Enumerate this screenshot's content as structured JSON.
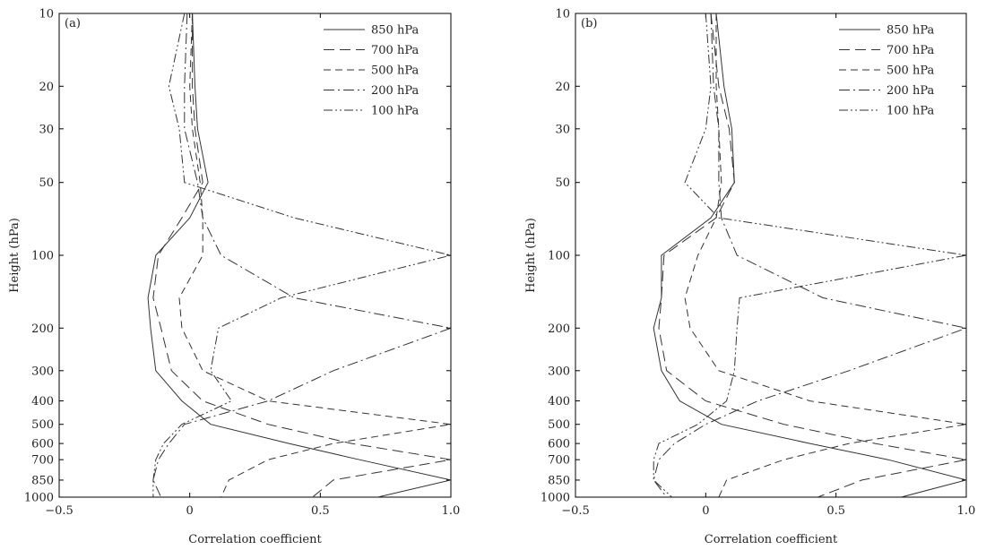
{
  "chart_data": [
    {
      "type": "line",
      "panel_label": "(a)",
      "xlabel": "Correlation coefficient",
      "ylabel": "Height (hPa)",
      "xlim": [
        -0.5,
        1.0
      ],
      "ylim": [
        1000,
        10
      ],
      "y_scale": "log",
      "x_ticks": [
        -0.5,
        0,
        0.5,
        1.0
      ],
      "x_tick_labels": [
        "−0.5",
        "0",
        "0.5",
        "1.0"
      ],
      "y_ticks": [
        10,
        20,
        30,
        50,
        100,
        200,
        300,
        400,
        500,
        600,
        700,
        850,
        1000
      ],
      "y_tick_labels": [
        "10",
        "20",
        "30",
        "50",
        "100",
        "200",
        "300",
        "400",
        "500",
        "600",
        "700",
        "850",
        "1000"
      ],
      "legend_position": "top-right",
      "series": [
        {
          "name": "850 hPa",
          "dash": "",
          "points": [
            [
              0.01,
              10
            ],
            [
              0.02,
              20
            ],
            [
              0.03,
              30
            ],
            [
              0.07,
              50
            ],
            [
              0.0,
              70
            ],
            [
              -0.13,
              100
            ],
            [
              -0.16,
              150
            ],
            [
              -0.15,
              200
            ],
            [
              -0.13,
              300
            ],
            [
              -0.03,
              400
            ],
            [
              0.08,
              500
            ],
            [
              0.38,
              600
            ],
            [
              0.65,
              700
            ],
            [
              1.0,
              850
            ],
            [
              0.72,
              1000
            ]
          ]
        },
        {
          "name": "700 hPa",
          "dash": "12,6",
          "points": [
            [
              0.01,
              10
            ],
            [
              0.01,
              20
            ],
            [
              0.02,
              30
            ],
            [
              0.05,
              50
            ],
            [
              -0.03,
              70
            ],
            [
              -0.12,
              100
            ],
            [
              -0.14,
              150
            ],
            [
              -0.11,
              200
            ],
            [
              -0.07,
              300
            ],
            [
              0.05,
              400
            ],
            [
              0.3,
              500
            ],
            [
              0.62,
              600
            ],
            [
              1.0,
              700
            ],
            [
              0.55,
              850
            ],
            [
              0.47,
              1000
            ]
          ]
        },
        {
          "name": "500 hPa",
          "dash": "8,5",
          "points": [
            [
              0.01,
              10
            ],
            [
              0.0,
              20
            ],
            [
              0.01,
              30
            ],
            [
              0.04,
              50
            ],
            [
              0.05,
              70
            ],
            [
              0.05,
              100
            ],
            [
              -0.04,
              150
            ],
            [
              -0.03,
              200
            ],
            [
              0.05,
              300
            ],
            [
              0.3,
              400
            ],
            [
              1.0,
              500
            ],
            [
              0.55,
              600
            ],
            [
              0.3,
              700
            ],
            [
              0.15,
              850
            ],
            [
              0.12,
              1000
            ]
          ]
        },
        {
          "name": "200 hPa",
          "dash": "12,4,2,4",
          "points": [
            [
              -0.01,
              10
            ],
            [
              -0.02,
              20
            ],
            [
              -0.02,
              30
            ],
            [
              0.03,
              50
            ],
            [
              0.05,
              70
            ],
            [
              0.12,
              100
            ],
            [
              0.4,
              150
            ],
            [
              1.0,
              200
            ],
            [
              0.55,
              300
            ],
            [
              0.3,
              400
            ],
            [
              -0.02,
              500
            ],
            [
              -0.08,
              600
            ],
            [
              -0.12,
              700
            ],
            [
              -0.14,
              850
            ],
            [
              -0.11,
              1000
            ]
          ]
        },
        {
          "name": "100 hPa",
          "dash": "10,3,2,3,2,3",
          "points": [
            [
              -0.02,
              10
            ],
            [
              -0.08,
              20
            ],
            [
              -0.04,
              30
            ],
            [
              -0.02,
              50
            ],
            [
              0.4,
              70
            ],
            [
              1.0,
              100
            ],
            [
              0.35,
              150
            ],
            [
              0.11,
              200
            ],
            [
              0.08,
              300
            ],
            [
              0.16,
              400
            ],
            [
              -0.03,
              500
            ],
            [
              -0.1,
              600
            ],
            [
              -0.13,
              700
            ],
            [
              -0.14,
              850
            ],
            [
              -0.14,
              1000
            ]
          ]
        }
      ]
    },
    {
      "type": "line",
      "panel_label": "(b)",
      "xlabel": "Correlation coefficient",
      "ylabel": "Height (hPa)",
      "xlim": [
        -0.5,
        1.0
      ],
      "ylim": [
        1000,
        10
      ],
      "y_scale": "log",
      "x_ticks": [
        -0.5,
        0,
        0.5,
        1.0
      ],
      "x_tick_labels": [
        "−0.5",
        "0",
        "0.5",
        "1.0"
      ],
      "y_ticks": [
        10,
        20,
        30,
        50,
        100,
        200,
        300,
        400,
        500,
        600,
        700,
        850,
        1000
      ],
      "y_tick_labels": [
        "10",
        "20",
        "30",
        "50",
        "100",
        "200",
        "300",
        "400",
        "500",
        "600",
        "700",
        "850",
        "1000"
      ],
      "legend_position": "top-right",
      "series": [
        {
          "name": "850 hPa",
          "dash": "",
          "points": [
            [
              0.04,
              10
            ],
            [
              0.07,
              20
            ],
            [
              0.1,
              30
            ],
            [
              0.11,
              50
            ],
            [
              0.02,
              70
            ],
            [
              -0.17,
              100
            ],
            [
              -0.17,
              150
            ],
            [
              -0.2,
              200
            ],
            [
              -0.17,
              300
            ],
            [
              -0.1,
              400
            ],
            [
              0.06,
              500
            ],
            [
              0.4,
              600
            ],
            [
              0.7,
              700
            ],
            [
              1.0,
              850
            ],
            [
              0.75,
              1000
            ]
          ]
        },
        {
          "name": "700 hPa",
          "dash": "12,6",
          "points": [
            [
              0.02,
              10
            ],
            [
              0.05,
              20
            ],
            [
              0.09,
              30
            ],
            [
              0.11,
              50
            ],
            [
              0.04,
              70
            ],
            [
              -0.16,
              100
            ],
            [
              -0.17,
              150
            ],
            [
              -0.18,
              200
            ],
            [
              -0.15,
              300
            ],
            [
              0.0,
              400
            ],
            [
              0.3,
              500
            ],
            [
              0.65,
              600
            ],
            [
              1.0,
              700
            ],
            [
              0.6,
              850
            ],
            [
              0.43,
              1000
            ]
          ]
        },
        {
          "name": "500 hPa",
          "dash": "8,5",
          "points": [
            [
              0.04,
              10
            ],
            [
              0.04,
              20
            ],
            [
              0.05,
              30
            ],
            [
              0.06,
              50
            ],
            [
              0.04,
              70
            ],
            [
              -0.03,
              100
            ],
            [
              -0.08,
              150
            ],
            [
              -0.06,
              200
            ],
            [
              0.05,
              300
            ],
            [
              0.4,
              400
            ],
            [
              1.0,
              500
            ],
            [
              0.55,
              600
            ],
            [
              0.3,
              700
            ],
            [
              0.08,
              850
            ],
            [
              0.05,
              1000
            ]
          ]
        },
        {
          "name": "200 hPa",
          "dash": "12,4,2,4",
          "points": [
            [
              0.02,
              10
            ],
            [
              0.03,
              20
            ],
            [
              0.05,
              30
            ],
            [
              0.05,
              50
            ],
            [
              0.06,
              70
            ],
            [
              0.12,
              100
            ],
            [
              0.45,
              150
            ],
            [
              1.0,
              200
            ],
            [
              0.55,
              300
            ],
            [
              0.2,
              400
            ],
            [
              0.0,
              500
            ],
            [
              -0.12,
              600
            ],
            [
              -0.18,
              700
            ],
            [
              -0.2,
              850
            ],
            [
              -0.15,
              1000
            ]
          ]
        },
        {
          "name": "100 hPa",
          "dash": "10,3,2,3,2,3",
          "points": [
            [
              0.0,
              10
            ],
            [
              0.02,
              20
            ],
            [
              0.0,
              30
            ],
            [
              -0.08,
              50
            ],
            [
              0.05,
              70
            ],
            [
              1.0,
              100
            ],
            [
              0.13,
              150
            ],
            [
              0.12,
              200
            ],
            [
              0.11,
              300
            ],
            [
              0.08,
              400
            ],
            [
              -0.03,
              500
            ],
            [
              -0.18,
              600
            ],
            [
              -0.2,
              700
            ],
            [
              -0.2,
              850
            ],
            [
              -0.13,
              1000
            ]
          ]
        }
      ]
    }
  ]
}
